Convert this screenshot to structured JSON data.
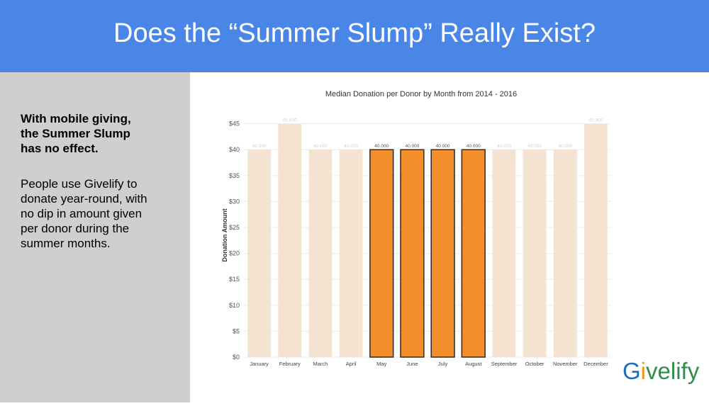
{
  "slide": {
    "title": "Does the “Summer Slump” Really Exist?",
    "sidebar_bold": "With mobile giving,\nthe Summer Slump\nhas no effect.",
    "sidebar_body": "People use Givelify to\ndonate year-round, with\nno dip in amount given\nper donor during the\nsummer months.",
    "logo": {
      "text_g": "G",
      "text_i": "i",
      "text_rest": "velify"
    }
  },
  "colors": {
    "header": "#4a86e8",
    "bar_default": "#f5e3d2",
    "bar_highlight": "#f28f2c",
    "bar_border": "#2b2b2b"
  },
  "chart_data": {
    "type": "bar",
    "title": "Median Donation per Donor by Month from 2014 - 2016",
    "ylabel": "Donation Amount",
    "xlabel": "",
    "ylim": [
      0,
      47
    ],
    "yticks": [
      0,
      5,
      10,
      15,
      20,
      25,
      30,
      35,
      40,
      45
    ],
    "ytick_labels": [
      "$0",
      "$5",
      "$10",
      "$15",
      "$20",
      "$25",
      "$30",
      "$35",
      "$40",
      "$45"
    ],
    "categories": [
      "January",
      "February",
      "March",
      "April",
      "May",
      "June",
      "July",
      "August",
      "September",
      "October",
      "November",
      "December"
    ],
    "values": [
      40,
      45,
      40,
      40,
      40,
      40,
      40,
      40,
      40,
      40,
      40,
      45
    ],
    "data_labels": [
      "40.000",
      "45.000",
      "40.000",
      "40.000",
      "40.000",
      "40.000",
      "40.000",
      "40.000",
      "40.000",
      "40.000",
      "40.000",
      "45.000"
    ],
    "highlighted": [
      "May",
      "June",
      "July",
      "August"
    ]
  }
}
